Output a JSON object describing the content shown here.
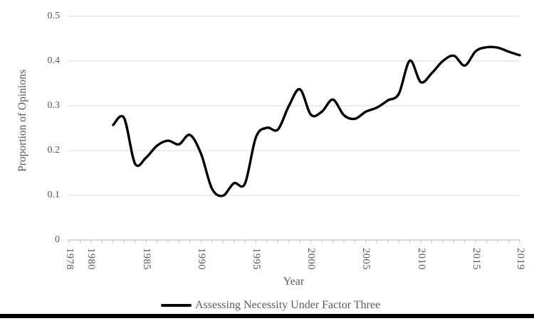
{
  "figure": {
    "background": "#ffffff",
    "text_color": "#595959",
    "gridline_color": "#d9d9d9",
    "axis_color": "#c4c4c4",
    "tick_color": "#c4c4c4",
    "bottom_bar_color": "#000000"
  },
  "chart_data": {
    "type": "line",
    "title": "",
    "xlabel": "Year",
    "ylabel": "Proportion of Opinions",
    "xlim": [
      1978,
      2019
    ],
    "ylim": [
      0,
      0.5
    ],
    "grid": "horizontal",
    "smooth": true,
    "legend_position": "bottom-center",
    "x_tick_labels": [
      "1978",
      "1980",
      "1985",
      "1990",
      "1995",
      "2000",
      "2005",
      "2010",
      "2015",
      "2019"
    ],
    "y_tick_labels": [
      "0",
      "0.1",
      "0.2",
      "0.3",
      "0.4",
      "0.5"
    ],
    "minor_x_tick_every_year": true,
    "series": [
      {
        "name": "Assessing Necessity Under Factor Three",
        "color": "#000000",
        "line_width": 3.4,
        "x": [
          1982,
          1983,
          1984,
          1985,
          1986,
          1987,
          1988,
          1989,
          1990,
          1991,
          1992,
          1993,
          1994,
          1995,
          1996,
          1997,
          1998,
          1999,
          2000,
          2001,
          2002,
          2003,
          2004,
          2005,
          2006,
          2007,
          2008,
          2009,
          2010,
          2011,
          2012,
          2013,
          2014,
          2015,
          2016,
          2017,
          2018,
          2019
        ],
        "values": [
          0.257,
          0.273,
          0.171,
          0.184,
          0.211,
          0.222,
          0.214,
          0.235,
          0.193,
          0.115,
          0.099,
          0.127,
          0.126,
          0.23,
          0.251,
          0.247,
          0.3,
          0.337,
          0.28,
          0.287,
          0.314,
          0.279,
          0.271,
          0.287,
          0.296,
          0.312,
          0.327,
          0.401,
          0.353,
          0.373,
          0.4,
          0.412,
          0.39,
          0.422,
          0.431,
          0.43,
          0.421,
          0.413
        ]
      }
    ]
  }
}
